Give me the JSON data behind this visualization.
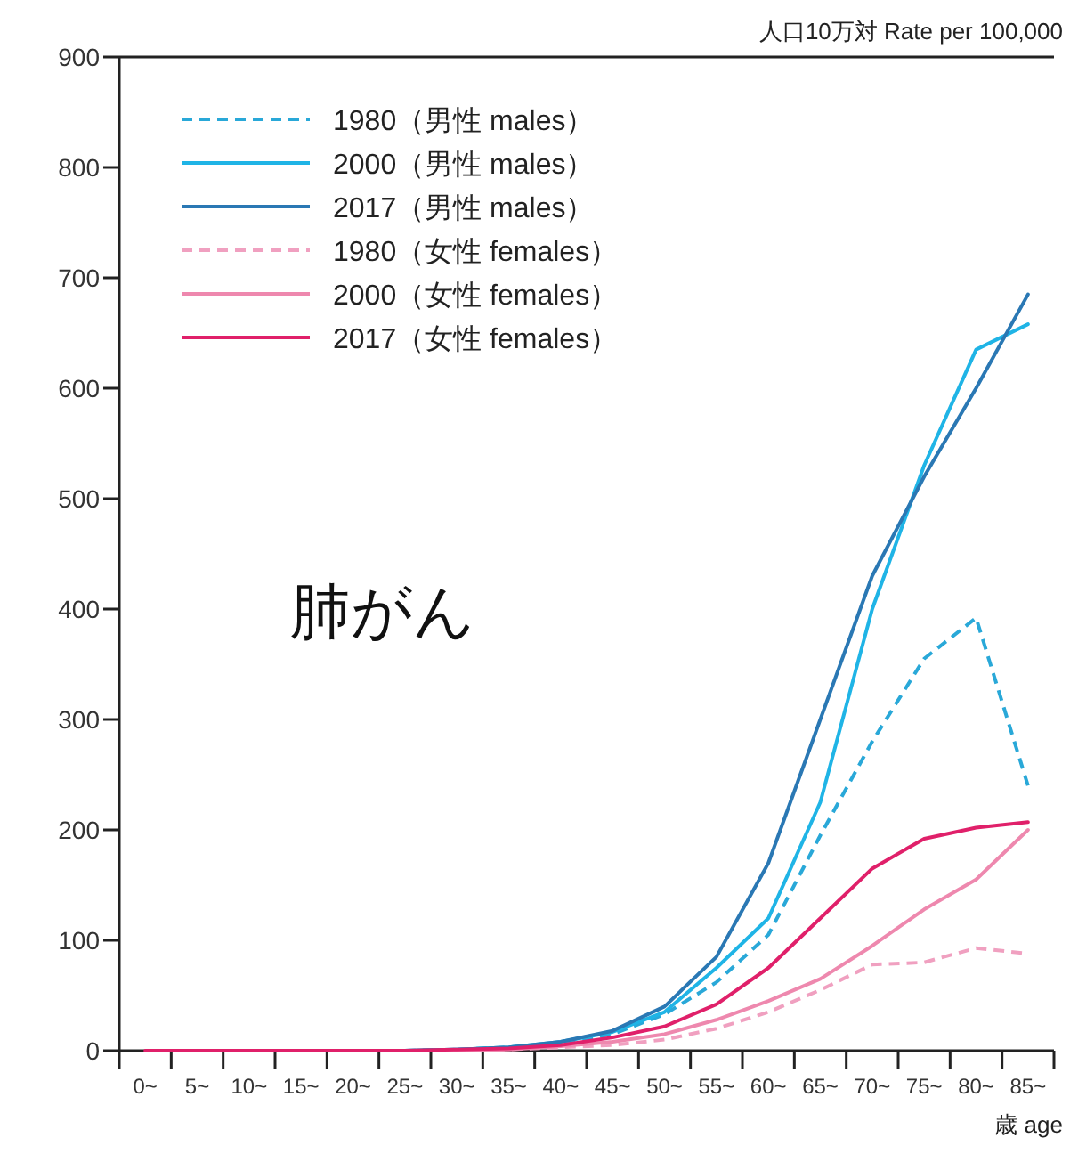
{
  "chart_data": {
    "type": "line",
    "title": "肺がん",
    "ylabel": "人口10万対  Rate per 100,000",
    "xlabel": "歳 age",
    "categories": [
      "0~",
      "5~",
      "10~",
      "15~",
      "20~",
      "25~",
      "30~",
      "35~",
      "40~",
      "45~",
      "50~",
      "55~",
      "60~",
      "65~",
      "70~",
      "75~",
      "80~",
      "85~"
    ],
    "ylim": [
      0,
      900
    ],
    "yticks": [
      0,
      100,
      200,
      300,
      400,
      500,
      600,
      700,
      800,
      900
    ],
    "legend": "top left",
    "grid": false,
    "marker": "none",
    "series": [
      {
        "name": "1980（男性 males）",
        "color": "#29a8d8",
        "line_style": "dashed",
        "values": [
          null,
          null,
          null,
          null,
          null,
          0,
          1,
          3,
          7,
          15,
          33,
          62,
          105,
          195,
          280,
          355,
          392,
          240
        ]
      },
      {
        "name": "2000（男性 males）",
        "color": "#1fb4e6",
        "line_style": "solid",
        "values": [
          null,
          null,
          null,
          null,
          null,
          0,
          1,
          3,
          8,
          17,
          35,
          75,
          120,
          225,
          400,
          530,
          635,
          658
        ]
      },
      {
        "name": "2017（男性 males）",
        "color": "#2a78b4",
        "line_style": "solid",
        "values": [
          null,
          null,
          null,
          null,
          null,
          0,
          1,
          3,
          8,
          18,
          40,
          85,
          170,
          300,
          430,
          520,
          600,
          685
        ]
      },
      {
        "name": "1980（女性 females）",
        "color": "#f0a0c0",
        "line_style": "dashed",
        "values": [
          null,
          null,
          null,
          null,
          null,
          0,
          0,
          1,
          3,
          5,
          10,
          20,
          35,
          55,
          78,
          80,
          93,
          88
        ]
      },
      {
        "name": "2000（女性 females）",
        "color": "#ee88ae",
        "line_style": "solid",
        "values": [
          null,
          null,
          null,
          null,
          null,
          0,
          0,
          1,
          4,
          8,
          15,
          28,
          45,
          65,
          95,
          128,
          155,
          200
        ]
      },
      {
        "name": "2017（女性 females）",
        "color": "#e0206a",
        "line_style": "solid",
        "values": [
          0,
          0,
          0,
          0,
          0,
          0,
          1,
          2,
          5,
          12,
          22,
          42,
          75,
          120,
          165,
          192,
          202,
          207
        ]
      }
    ]
  }
}
